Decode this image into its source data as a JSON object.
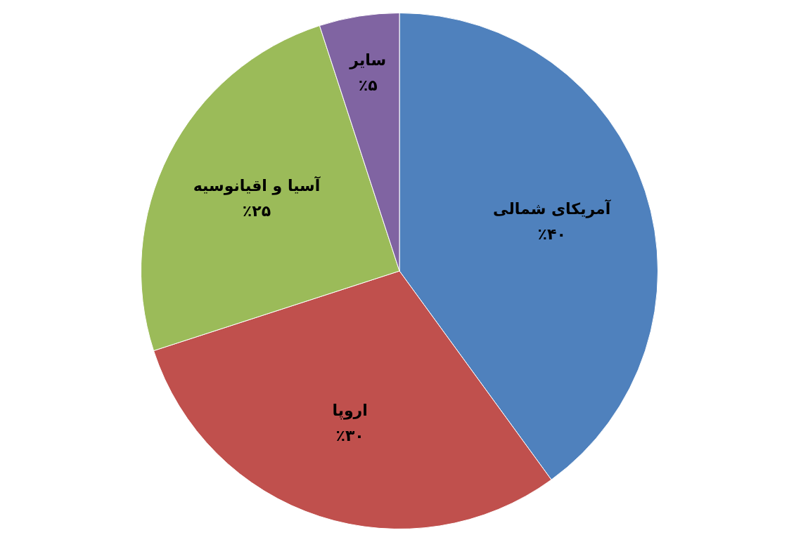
{
  "chart_data": {
    "type": "pie",
    "categories": [
      "آمریکای شمالی",
      "اروپا",
      "آسیا و اقیانوسیه",
      "سایر"
    ],
    "values": [
      40,
      30,
      25,
      5
    ],
    "colors": [
      "#4f81bd",
      "#c0504d",
      "#9bbb59",
      "#8064a2"
    ],
    "value_labels": [
      "٪۴۰",
      "٪۳۰",
      "٪۲۵",
      "٪۵"
    ],
    "legend": false
  }
}
